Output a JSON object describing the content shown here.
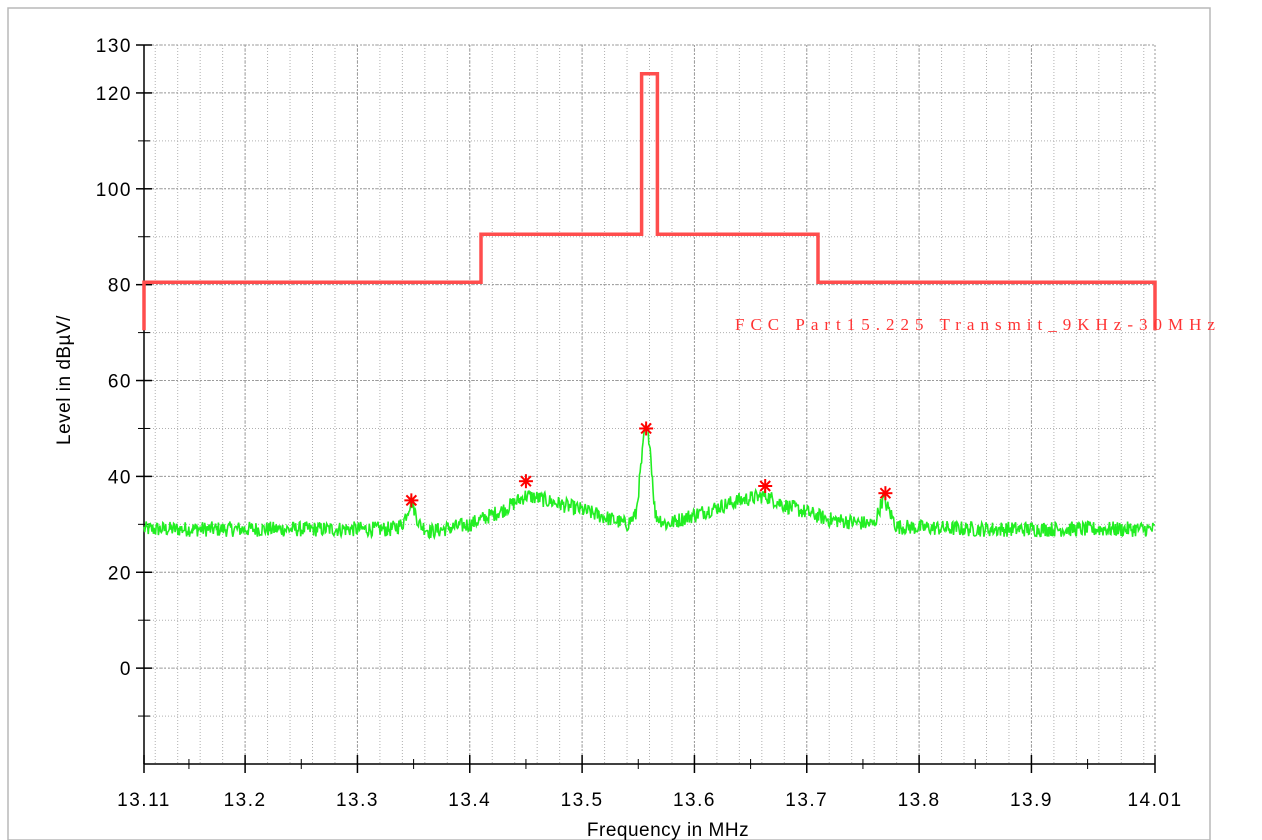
{
  "chart_data": {
    "type": "line",
    "title": "",
    "xlabel": "Frequency in MHz",
    "ylabel": "Level in dBµV/",
    "xlim": [
      13.11,
      14.01
    ],
    "ylim": [
      -20,
      130
    ],
    "x_ticks": [
      "13.11",
      "13.2",
      "13.3",
      "13.4",
      "13.5",
      "13.6",
      "13.7",
      "13.8",
      "13.9",
      "14.01"
    ],
    "x_tick_values": [
      13.11,
      13.2,
      13.3,
      13.4,
      13.5,
      13.6,
      13.7,
      13.8,
      13.9,
      14.01
    ],
    "y_ticks": [
      "0",
      "20",
      "40",
      "60",
      "80",
      "100",
      "120",
      "130"
    ],
    "y_tick_values": [
      0,
      20,
      40,
      60,
      80,
      100,
      120,
      130
    ],
    "grid": true,
    "colors": {
      "limit": "#ff4d4d",
      "measurement": "#22ee22",
      "peaks": "#ff0000",
      "grid": "#b0b0b0"
    },
    "series": [
      {
        "name": "FCC Part15.225 Transmit_9KHz-30MHz",
        "kind": "limit",
        "x": [
          13.11,
          13.11,
          13.41,
          13.41,
          13.553,
          13.553,
          13.567,
          13.567,
          13.71,
          13.71,
          14.01,
          14.01
        ],
        "y": [
          70.5,
          80.5,
          80.5,
          90.5,
          90.5,
          124,
          124,
          90.5,
          90.5,
          80.5,
          80.5,
          70.5
        ]
      },
      {
        "kind": "measurement",
        "x": [
          13.11,
          13.2,
          13.3,
          13.33,
          13.34,
          13.348,
          13.355,
          13.365,
          13.4,
          13.43,
          13.45,
          13.46,
          13.5,
          13.54,
          13.548,
          13.556,
          13.56,
          13.565,
          13.575,
          13.6,
          13.64,
          13.663,
          13.68,
          13.72,
          13.76,
          13.768,
          13.773,
          13.78,
          13.85,
          13.95,
          14.01
        ],
        "y": [
          29,
          29,
          29,
          29,
          30,
          35,
          30,
          28.5,
          30,
          33,
          36,
          35.5,
          33,
          30,
          32,
          50,
          48,
          32,
          30,
          32,
          35,
          36,
          34,
          31,
          30,
          35.5,
          33,
          29.5,
          29,
          29,
          29
        ]
      },
      {
        "kind": "peaks",
        "x": [
          13.348,
          13.45,
          13.557,
          13.663,
          13.77
        ],
        "y": [
          35,
          39,
          50,
          38,
          36.5
        ]
      }
    ]
  }
}
